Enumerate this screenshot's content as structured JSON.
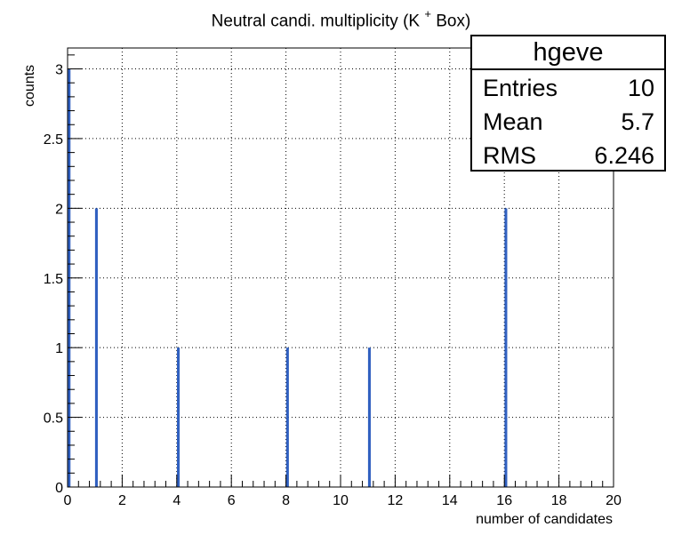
{
  "title": {
    "main": "Neutral candi. multiplicity (K",
    "sup": "+",
    "tail": " Box)"
  },
  "stats": {
    "name": "hgeve",
    "rows": [
      {
        "label": "Entries",
        "value": "10"
      },
      {
        "label": "Mean",
        "value": "5.7"
      },
      {
        "label": "RMS",
        "value": "6.246"
      }
    ]
  },
  "colors": {
    "bar": "#3060c0",
    "grid": "#000000"
  },
  "chart_data": {
    "type": "bar",
    "xlabel": "number of candidates",
    "ylabel": "counts",
    "xlim": [
      0,
      20
    ],
    "ylim": [
      0,
      3.15
    ],
    "grid": true,
    "x_ticks": [
      "0",
      "2",
      "4",
      "6",
      "8",
      "10",
      "12",
      "14",
      "16",
      "18",
      "20"
    ],
    "y_ticks": [
      "0",
      "0.5",
      "1",
      "1.5",
      "2",
      "2.5",
      "3"
    ],
    "x": [
      0,
      1,
      4,
      8,
      11,
      16
    ],
    "values": [
      3,
      2,
      1,
      1,
      1,
      2
    ]
  }
}
